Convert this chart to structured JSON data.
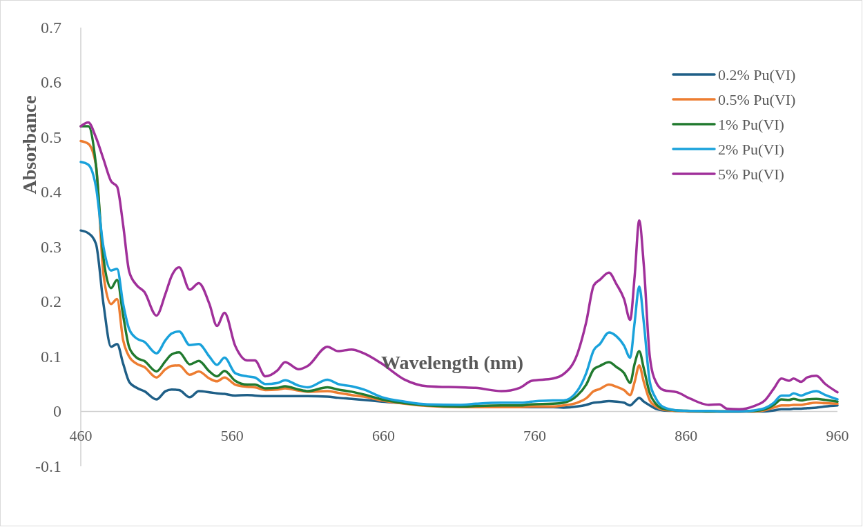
{
  "chart_data": {
    "type": "line",
    "xlabel": "Wavelength (nm)",
    "ylabel": "Absorbance",
    "x": [
      460,
      465,
      470,
      475,
      480,
      484,
      488,
      492,
      497,
      502,
      510,
      516,
      520,
      525,
      532,
      538,
      545,
      550,
      555,
      562,
      570,
      575,
      582,
      590,
      595,
      604,
      610,
      623,
      630,
      639,
      647,
      659,
      674,
      689,
      711,
      721,
      738,
      750,
      758,
      772,
      779,
      788,
      794,
      799,
      803,
      809,
      814,
      819,
      823,
      826,
      829,
      832,
      836,
      840,
      845,
      854,
      863,
      875,
      882,
      887,
      895,
      905,
      912,
      918,
      923,
      928,
      931,
      936,
      940,
      946,
      952,
      960
    ],
    "series": [
      {
        "name": "0.2% Pu(VI)",
        "color": "#1f5f87",
        "values": [
          0.33,
          0.325,
          0.306,
          0.196,
          0.118,
          0.123,
          0.087,
          0.054,
          0.043,
          0.037,
          0.022,
          0.037,
          0.04,
          0.039,
          0.026,
          0.037,
          0.035,
          0.033,
          0.032,
          0.029,
          0.03,
          0.029,
          0.028,
          0.028,
          0.028,
          0.028,
          0.028,
          0.027,
          0.025,
          0.023,
          0.021,
          0.018,
          0.015,
          0.012,
          0.009,
          0.008,
          0.008,
          0.008,
          0.008,
          0.008,
          0.007,
          0.009,
          0.012,
          0.016,
          0.017,
          0.019,
          0.018,
          0.016,
          0.011,
          0.018,
          0.025,
          0.018,
          0.011,
          0.005,
          0.002,
          0.001,
          0,
          0,
          0,
          0,
          0,
          0,
          0,
          0.002,
          0.004,
          0.004,
          0.005,
          0.005,
          0.006,
          0.007,
          0.009,
          0.011
        ]
      },
      {
        "name": "0.5% Pu(VI)",
        "color": "#ed7d31",
        "values": [
          0.493,
          0.488,
          0.45,
          0.25,
          0.196,
          0.205,
          0.13,
          0.1,
          0.087,
          0.081,
          0.062,
          0.077,
          0.083,
          0.084,
          0.067,
          0.073,
          0.06,
          0.055,
          0.062,
          0.049,
          0.045,
          0.044,
          0.039,
          0.04,
          0.042,
          0.038,
          0.036,
          0.037,
          0.034,
          0.03,
          0.027,
          0.02,
          0.014,
          0.01,
          0.008,
          0.008,
          0.008,
          0.008,
          0.009,
          0.009,
          0.011,
          0.016,
          0.024,
          0.037,
          0.041,
          0.049,
          0.045,
          0.039,
          0.03,
          0.054,
          0.084,
          0.054,
          0.02,
          0.009,
          0.003,
          0.001,
          0,
          0,
          0,
          0,
          0,
          0,
          0.002,
          0.007,
          0.011,
          0.011,
          0.012,
          0.012,
          0.014,
          0.016,
          0.015,
          0.014
        ]
      },
      {
        "name": "1% Pu(VI)",
        "color": "#217a2f",
        "values": [
          0.52,
          0.52,
          0.45,
          0.28,
          0.225,
          0.24,
          0.175,
          0.117,
          0.098,
          0.092,
          0.073,
          0.092,
          0.104,
          0.108,
          0.086,
          0.092,
          0.073,
          0.064,
          0.074,
          0.056,
          0.049,
          0.049,
          0.042,
          0.043,
          0.046,
          0.04,
          0.037,
          0.044,
          0.04,
          0.036,
          0.031,
          0.022,
          0.015,
          0.011,
          0.009,
          0.01,
          0.011,
          0.011,
          0.013,
          0.014,
          0.016,
          0.029,
          0.049,
          0.077,
          0.083,
          0.09,
          0.081,
          0.07,
          0.052,
          0.087,
          0.11,
          0.079,
          0.033,
          0.014,
          0.005,
          0.002,
          0.001,
          0,
          0,
          0,
          0,
          0.001,
          0.004,
          0.012,
          0.022,
          0.021,
          0.023,
          0.02,
          0.022,
          0.023,
          0.021,
          0.018
        ]
      },
      {
        "name": "2% Pu(VI)",
        "color": "#1aa2db",
        "values": [
          0.455,
          0.45,
          0.41,
          0.3,
          0.257,
          0.26,
          0.196,
          0.15,
          0.133,
          0.127,
          0.106,
          0.13,
          0.142,
          0.146,
          0.121,
          0.123,
          0.1,
          0.085,
          0.098,
          0.07,
          0.064,
          0.062,
          0.05,
          0.052,
          0.057,
          0.047,
          0.044,
          0.058,
          0.05,
          0.046,
          0.04,
          0.026,
          0.018,
          0.013,
          0.012,
          0.014,
          0.016,
          0.016,
          0.018,
          0.02,
          0.02,
          0.037,
          0.07,
          0.112,
          0.123,
          0.144,
          0.137,
          0.12,
          0.098,
          0.163,
          0.228,
          0.163,
          0.054,
          0.024,
          0.008,
          0.002,
          0.001,
          0.001,
          0,
          0,
          0,
          0.002,
          0.006,
          0.016,
          0.029,
          0.029,
          0.033,
          0.029,
          0.033,
          0.037,
          0.03,
          0.022
        ]
      },
      {
        "name": "5% Pu(VI)",
        "color": "#a0309a",
        "values": [
          0.52,
          0.527,
          0.5,
          0.46,
          0.42,
          0.41,
          0.34,
          0.255,
          0.23,
          0.218,
          0.175,
          0.215,
          0.247,
          0.263,
          0.222,
          0.234,
          0.196,
          0.156,
          0.18,
          0.12,
          0.093,
          0.093,
          0.064,
          0.075,
          0.09,
          0.077,
          0.083,
          0.118,
          0.11,
          0.113,
          0.106,
          0.087,
          0.058,
          0.046,
          0.044,
          0.043,
          0.037,
          0.043,
          0.056,
          0.06,
          0.068,
          0.104,
          0.163,
          0.23,
          0.24,
          0.253,
          0.232,
          0.205,
          0.167,
          0.247,
          0.348,
          0.268,
          0.1,
          0.054,
          0.039,
          0.035,
          0.023,
          0.012,
          0.013,
          0.005,
          0.004,
          0.01,
          0.02,
          0.042,
          0.06,
          0.056,
          0.06,
          0.054,
          0.062,
          0.065,
          0.05,
          0.035
        ]
      }
    ],
    "xlim": [
      460,
      960
    ],
    "xticks": [
      460,
      560,
      660,
      760,
      860,
      960
    ],
    "ylim": [
      -0.1,
      0.7
    ],
    "yticks": [
      -0.1,
      0,
      0.1,
      0.2,
      0.3,
      0.4,
      0.5,
      0.6,
      0.7
    ],
    "legend": "top right",
    "line_style": "solid",
    "grid": false
  }
}
